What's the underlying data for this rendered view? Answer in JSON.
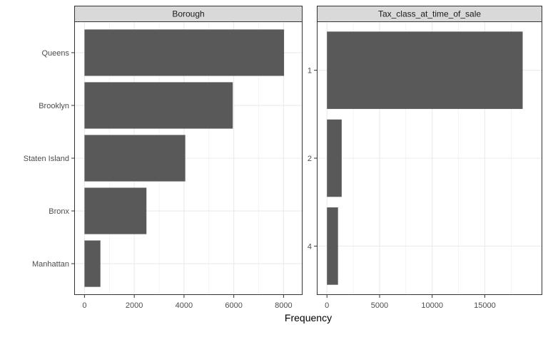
{
  "chart_data": [
    {
      "type": "bar",
      "orientation": "horizontal",
      "title": "Borough",
      "categories": [
        "Queens",
        "Brooklyn",
        "Staten Island",
        "Bronx",
        "Manhattan"
      ],
      "values": [
        8020,
        5960,
        4050,
        2490,
        640
      ],
      "xticks": [
        "0",
        "2000",
        "4000",
        "6000",
        "8000"
      ],
      "xlim": [
        0,
        8350
      ],
      "grid": true
    },
    {
      "type": "bar",
      "orientation": "horizontal",
      "title": "Tax_class_at_time_of_sale",
      "categories": [
        "1",
        "2",
        "4"
      ],
      "values": [
        18600,
        1400,
        1050
      ],
      "xticks": [
        "0",
        "5000",
        "10000",
        "15000"
      ],
      "xlim": [
        0,
        19500
      ],
      "grid": true
    }
  ],
  "xlabel": "Frequency",
  "colors": {
    "bar": "#595959",
    "strip_bg": "#d9d9d9",
    "panel_border": "#333333",
    "grid": "#ebebeb"
  }
}
